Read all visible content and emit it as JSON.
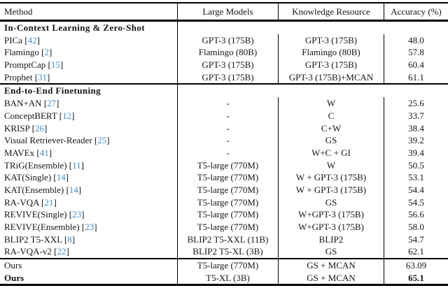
{
  "table": {
    "link_color": "#3e8ed0",
    "header": {
      "method": "Method",
      "large_models": "Large Models",
      "knowledge_resource": "Knowledge Resource",
      "accuracy": "Accuracy (%)"
    },
    "sections": [
      {
        "title": "In-Context Learning & Zero-Shot",
        "rows": [
          {
            "method": "PICa",
            "cite": "42",
            "model": "GPT-3 (175B)",
            "knowledge": "GPT-3 (175B)",
            "accuracy": "48.0",
            "bold": false
          },
          {
            "method": "Flamingo",
            "cite": "2",
            "model": "Flamingo (80B)",
            "knowledge": "Flamingo (80B)",
            "accuracy": "57.8",
            "bold": false
          },
          {
            "method": "PromptCap",
            "cite": "15",
            "model": "GPT-3 (175B)",
            "knowledge": "GPT-3 (175B)",
            "accuracy": "60.4",
            "bold": false
          },
          {
            "method": "Prophet",
            "cite": "31",
            "model": "GPT-3 (175B)",
            "knowledge": "GPT-3 (175B)+MCAN",
            "accuracy": "61.1",
            "bold": false
          }
        ]
      },
      {
        "title": "End-to-End Finetuning",
        "rows": [
          {
            "method": "BAN+AN",
            "cite": "27",
            "model": "-",
            "knowledge": "W",
            "accuracy": "25.6",
            "bold": false
          },
          {
            "method": "ConceptBERT",
            "cite": "12",
            "model": "-",
            "knowledge": "C",
            "accuracy": "33.7",
            "bold": false
          },
          {
            "method": "KRISP",
            "cite": "26",
            "model": "-",
            "knowledge": "C+W",
            "accuracy": "38.4",
            "bold": false
          },
          {
            "method": "Visual Retriever-Reader",
            "cite": "25",
            "model": "-",
            "knowledge": "GS",
            "accuracy": "39.2",
            "bold": false
          },
          {
            "method": "MAVEx",
            "cite": "41",
            "model": "-",
            "knowledge": "W+C + GI",
            "accuracy": "39.4",
            "bold": false
          },
          {
            "method": "TRiG(Ensemble)",
            "cite": "11",
            "model": "T5-large (770M)",
            "knowledge": "W",
            "accuracy": "50.5",
            "bold": false
          },
          {
            "method": "KAT(Single)",
            "cite": "14",
            "model": "T5-large (770M)",
            "knowledge": "W + GPT-3 (175B)",
            "accuracy": "53.1",
            "bold": false
          },
          {
            "method": "KAT(Ensemble)",
            "cite": "14",
            "model": "T5-large (770M)",
            "knowledge": "W + GPT-3 (175B)",
            "accuracy": "54.4",
            "bold": false
          },
          {
            "method": "RA-VQA",
            "cite": "21",
            "model": "T5-large (770M)",
            "knowledge": "GS",
            "accuracy": "54.5",
            "bold": false
          },
          {
            "method": "REVIVE(Single)",
            "cite": "23",
            "model": "T5-large (770M)",
            "knowledge": "W+GPT-3 (175B)",
            "accuracy": "56.6",
            "bold": false
          },
          {
            "method": "REVIVE(Ensemble)",
            "cite": "23",
            "model": "T5-large (770M)",
            "knowledge": "W+GPT-3 (175B)",
            "accuracy": "58.0",
            "bold": false
          },
          {
            "method": "BLIP2 T5-XXL",
            "cite": "8",
            "model": "BLIP2 T5-XXL (11B)",
            "knowledge": "BLIP2",
            "accuracy": "54.7",
            "bold": false
          },
          {
            "method": "RA-VQA-v2",
            "cite": "22",
            "model": "BLIP2 T5-XL (3B)",
            "knowledge": "GS",
            "accuracy": "62.1",
            "bold": false
          }
        ]
      },
      {
        "title": null,
        "rows": [
          {
            "method": "Ours",
            "cite": null,
            "model": "T5-large (770M)",
            "knowledge": "GS + MCAN",
            "accuracy": "63.09",
            "bold": false
          },
          {
            "method": "Ours",
            "cite": null,
            "model": "T5-XL (3B)",
            "knowledge": "GS + MCAN",
            "accuracy": "65.1",
            "bold": true
          }
        ]
      }
    ]
  }
}
